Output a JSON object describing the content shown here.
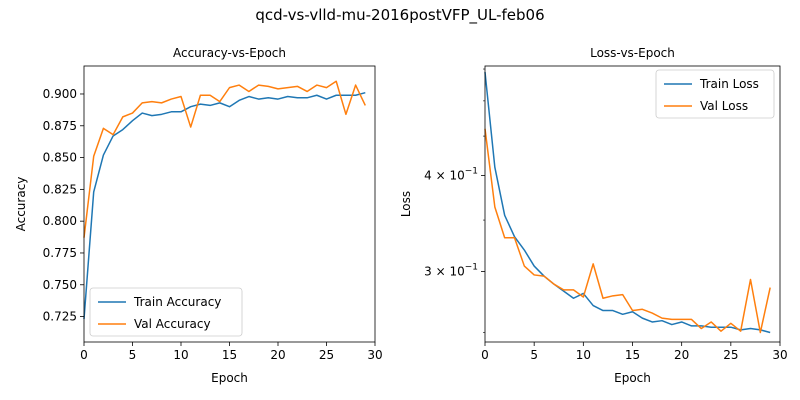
{
  "figure": {
    "suptitle": "qcd-vs-vlld-mu-2016postVFP_UL-feb06"
  },
  "colors": {
    "train": "#1f77b4",
    "val": "#ff7f0e"
  },
  "chart_data": [
    {
      "type": "line",
      "title": "Accuracy-vs-Epoch",
      "xlabel": "Epoch",
      "ylabel": "Accuracy",
      "xlim": [
        0,
        30
      ],
      "ylim": [
        0.705,
        0.922
      ],
      "xticks": [
        0,
        5,
        10,
        15,
        20,
        25,
        30
      ],
      "xtick_labels": [
        "0",
        "5",
        "10",
        "15",
        "20",
        "25",
        "30"
      ],
      "yticks": [
        0.725,
        0.75,
        0.775,
        0.8,
        0.825,
        0.85,
        0.875,
        0.9
      ],
      "ytick_labels": [
        "0.725",
        "0.750",
        "0.775",
        "0.800",
        "0.825",
        "0.850",
        "0.875",
        "0.900"
      ],
      "grid": false,
      "legend_position": "lower-left",
      "x": [
        0,
        1,
        2,
        3,
        4,
        5,
        6,
        7,
        8,
        9,
        10,
        11,
        12,
        13,
        14,
        15,
        16,
        17,
        18,
        19,
        20,
        21,
        22,
        23,
        24,
        25,
        26,
        27,
        28,
        29
      ],
      "series": [
        {
          "name": "Train Accuracy",
          "color_key": "train",
          "values": [
            0.723,
            0.823,
            0.852,
            0.867,
            0.872,
            0.879,
            0.885,
            0.883,
            0.884,
            0.886,
            0.886,
            0.89,
            0.892,
            0.891,
            0.893,
            0.89,
            0.895,
            0.898,
            0.896,
            0.897,
            0.896,
            0.898,
            0.897,
            0.897,
            0.899,
            0.896,
            0.899,
            0.899,
            0.899,
            0.901
          ]
        },
        {
          "name": "Val Accuracy",
          "color_key": "val",
          "values": [
            0.787,
            0.851,
            0.873,
            0.868,
            0.882,
            0.885,
            0.893,
            0.894,
            0.893,
            0.896,
            0.898,
            0.874,
            0.899,
            0.899,
            0.894,
            0.905,
            0.907,
            0.902,
            0.907,
            0.906,
            0.904,
            0.905,
            0.906,
            0.902,
            0.907,
            0.905,
            0.91,
            0.884,
            0.907,
            0.891
          ]
        }
      ]
    },
    {
      "type": "line",
      "title": "Loss-vs-Epoch",
      "xlabel": "Epoch",
      "ylabel": "Loss",
      "yscale": "log",
      "xlim": [
        0,
        30
      ],
      "ylim": [
        0.243,
        0.555
      ],
      "xticks": [
        0,
        5,
        10,
        15,
        20,
        25,
        30
      ],
      "xtick_labels": [
        "0",
        "5",
        "10",
        "15",
        "20",
        "25",
        "30"
      ],
      "yticks": [
        0.3,
        0.4
      ],
      "ytick_labels": [
        {
          "base": "3 × 10",
          "exp": "−1"
        },
        {
          "base": "4 × 10",
          "exp": "−1"
        }
      ],
      "grid": false,
      "legend_position": "upper-right",
      "x": [
        0,
        1,
        2,
        3,
        4,
        5,
        6,
        7,
        8,
        9,
        10,
        11,
        12,
        13,
        14,
        15,
        16,
        17,
        18,
        19,
        20,
        21,
        22,
        23,
        24,
        25,
        26,
        27,
        28,
        29
      ],
      "series": [
        {
          "name": "Train Loss",
          "color_key": "train",
          "values": [
            0.545,
            0.41,
            0.355,
            0.333,
            0.32,
            0.305,
            0.296,
            0.289,
            0.283,
            0.277,
            0.281,
            0.271,
            0.267,
            0.267,
            0.264,
            0.266,
            0.261,
            0.258,
            0.259,
            0.256,
            0.258,
            0.255,
            0.255,
            0.254,
            0.254,
            0.254,
            0.252,
            0.253,
            0.252,
            0.25
          ]
        },
        {
          "name": "Val Loss",
          "color_key": "val",
          "values": [
            0.46,
            0.364,
            0.332,
            0.332,
            0.305,
            0.297,
            0.296,
            0.289,
            0.284,
            0.284,
            0.278,
            0.307,
            0.277,
            0.279,
            0.28,
            0.267,
            0.268,
            0.265,
            0.261,
            0.26,
            0.26,
            0.26,
            0.253,
            0.258,
            0.251,
            0.257,
            0.251,
            0.293,
            0.25,
            0.286
          ]
        }
      ]
    }
  ]
}
